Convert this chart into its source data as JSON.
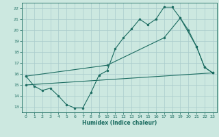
{
  "title": "",
  "xlabel": "Humidex (Indice chaleur)",
  "bg_color": "#cce8e0",
  "grid_color": "#aacccc",
  "line_color": "#1a6b60",
  "xlim": [
    -0.5,
    23.5
  ],
  "ylim": [
    12.5,
    22.5
  ],
  "xticks": [
    0,
    1,
    2,
    3,
    4,
    5,
    6,
    7,
    8,
    9,
    10,
    11,
    12,
    13,
    14,
    15,
    16,
    17,
    18,
    19,
    20,
    21,
    22,
    23
  ],
  "yticks": [
    13,
    14,
    15,
    16,
    17,
    18,
    19,
    20,
    21,
    22
  ],
  "line1_x": [
    0,
    1,
    2,
    3,
    4,
    5,
    6,
    7,
    8,
    9,
    10,
    11,
    12,
    13,
    14,
    15,
    16,
    17,
    18,
    19,
    20,
    21,
    22,
    23
  ],
  "line1_y": [
    15.8,
    14.9,
    14.5,
    14.7,
    14.0,
    13.2,
    12.9,
    12.9,
    14.3,
    15.9,
    16.3,
    18.3,
    19.3,
    20.1,
    21.0,
    20.5,
    21.0,
    22.1,
    22.1,
    21.1,
    20.0,
    18.5,
    16.6,
    16.1
  ],
  "line2_x": [
    0,
    10,
    17,
    19,
    21,
    22,
    23
  ],
  "line2_y": [
    15.8,
    16.8,
    19.3,
    21.1,
    18.5,
    16.6,
    16.1
  ],
  "line3_x": [
    0,
    23
  ],
  "line3_y": [
    15.0,
    16.1
  ]
}
